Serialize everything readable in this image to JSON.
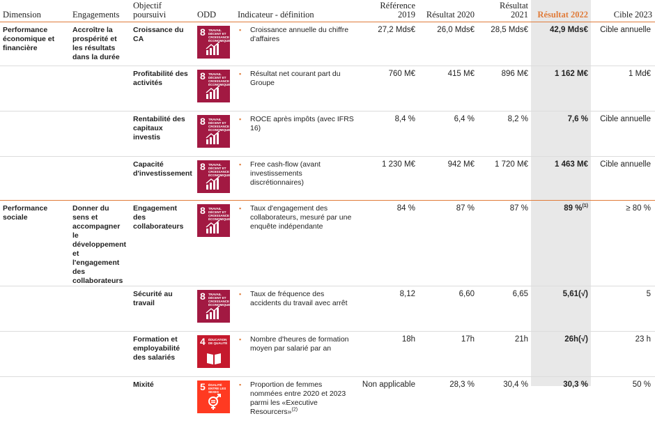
{
  "headers": {
    "dimension": "Dimension",
    "engagements": "Engagements",
    "objectif": "Objectif poursuivi",
    "odd": "ODD",
    "indicateur": "Indicateur - définition",
    "ref2019": "Référence 2019",
    "res2020": "Résultat 2020",
    "res2021": "Résultat 2021",
    "res2022": "Résultat 2022",
    "cible2023": "Cible 2023"
  },
  "sdg_colors": {
    "8": "#a21942",
    "4": "#c5192d",
    "5": "#ff3a21"
  },
  "sdg_titles": {
    "8": "TRAVAIL DÉCENT ET CROISSANCE ÉCONOMIQUE",
    "4": "ÉDUCATION DE QUALITÉ",
    "5": "ÉGALITÉ ENTRE LES SEXES"
  },
  "sections": [
    {
      "dimension": "Performance économique et financière",
      "engagement": "Accroître la prospérité et les résultats dans la durée",
      "rows": [
        {
          "objectif": "Croissance du CA",
          "sdg": "8",
          "sdg_icon": "growth-chart-icon",
          "indicateur": "Croissance annuelle du chiffre d'affaires",
          "ind_note": "",
          "ref2019": "27,2 Mds€",
          "res2020": "26,0 Mds€",
          "res2021": "28,5 Mds€",
          "res2022": "42,9 Mds€",
          "res2022_note": "",
          "cible2023": "Cible annuelle"
        },
        {
          "objectif": "Profitabilité des activités",
          "sdg": "8",
          "sdg_icon": "growth-chart-icon",
          "indicateur": "Résultat net courant part du Groupe",
          "ind_note": "",
          "ref2019": "760 M€",
          "res2020": "415 M€",
          "res2021": "896 M€",
          "res2022": "1 162 M€",
          "res2022_note": "",
          "cible2023": "1 Md€"
        },
        {
          "objectif": "Rentabilité des capitaux investis",
          "sdg": "8",
          "sdg_icon": "growth-chart-icon",
          "indicateur": "ROCE après impôts (avec IFRS 16)",
          "ind_note": "",
          "ref2019": "8,4 %",
          "res2020": "6,4 %",
          "res2021": "8,2 %",
          "res2022": "7,6 %",
          "res2022_note": "",
          "cible2023": "Cible annuelle"
        },
        {
          "objectif": "Capacité d'investissement",
          "sdg": "8",
          "sdg_icon": "growth-chart-icon",
          "indicateur": "Free cash-flow (avant investissements discrétionnaires)",
          "ind_note": "",
          "ref2019": "1 230 M€",
          "res2020": "942 M€",
          "res2021": "1 720 M€",
          "res2022": "1 463 M€",
          "res2022_note": "",
          "cible2023": "Cible annuelle"
        }
      ]
    },
    {
      "dimension": "Performance sociale",
      "engagement": "Donner du sens et accompagner le développement et l'engagement des collaborateurs",
      "rows": [
        {
          "objectif": "Engagement des collaborateurs",
          "sdg": "8",
          "sdg_icon": "growth-chart-icon",
          "indicateur": "Taux d'engagement des collaborateurs, mesuré par une enquête indépendante",
          "ind_note": "",
          "ref2019": "84 %",
          "res2020": "87 %",
          "res2021": "87 %",
          "res2022": "89 %",
          "res2022_note": "(1)",
          "cible2023": "≥ 80 %"
        },
        {
          "objectif": "Sécurité au travail",
          "sdg": "8",
          "sdg_icon": "growth-chart-icon",
          "indicateur": "Taux de fréquence des accidents du travail avec arrêt",
          "ind_note": "",
          "ref2019": "8,12",
          "res2020": "6,60",
          "res2021": "6,65",
          "res2022": "5,61(√)",
          "res2022_note": "",
          "cible2023": "5"
        },
        {
          "objectif": "Formation et employabilité des salariés",
          "sdg": "4",
          "sdg_icon": "book-icon",
          "indicateur": "Nombre d'heures de formation moyen par salarié par an",
          "ind_note": "",
          "ref2019": "18h",
          "res2020": "17h",
          "res2021": "21h",
          "res2022": "26h(√)",
          "res2022_note": "",
          "cible2023": "23 h"
        },
        {
          "objectif": "Mixité",
          "sdg": "5",
          "sdg_icon": "gender-equality-icon",
          "indicateur": "Proportion de femmes nommées entre 2020 et 2023 parmi les «Executive Resourcers»",
          "ind_note": "(2)",
          "ref2019": "Non applicable",
          "res2020": "28,3 %",
          "res2021": "30,4 %",
          "res2022": "30,3 %",
          "res2022_note": "",
          "cible2023": "50 %"
        }
      ]
    }
  ]
}
